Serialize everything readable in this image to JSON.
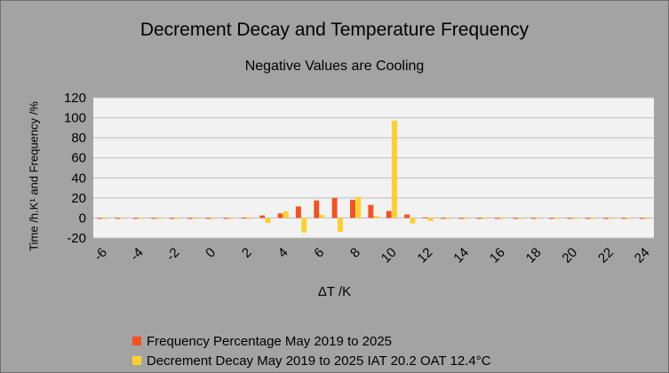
{
  "chart_data": {
    "type": "bar",
    "title": "Decrement Decay and Temperature Frequency",
    "subtitle": "Negative Values are Cooling",
    "xlabel": "ΔT /K",
    "ylabel": "Time /h.K¹ and Frequency /%",
    "ylim": [
      -20,
      120
    ],
    "y_ticks": [
      "-20",
      "0",
      "20",
      "40",
      "60",
      "80",
      "100",
      "120"
    ],
    "x_ticks": [
      "-6",
      "-4",
      "-2",
      "0",
      "2",
      "4",
      "6",
      "8",
      "10",
      "12",
      "14",
      "16",
      "18",
      "20",
      "22",
      "24"
    ],
    "categories": [
      -6,
      -5,
      -4,
      -3,
      -2,
      -1,
      0,
      1,
      2,
      3,
      4,
      5,
      6,
      7,
      8,
      9,
      10,
      11,
      12,
      13,
      14,
      15,
      16,
      17,
      18,
      19,
      20,
      21,
      22,
      23,
      24
    ],
    "grid": true,
    "legend_position": "bottom",
    "series": [
      {
        "name": "Frequency Percentage May 2019 to 2025",
        "color": "#f4511e",
        "values": [
          0,
          0,
          0,
          0,
          0,
          0,
          0,
          0,
          0.3,
          2.5,
          4.5,
          11.5,
          17.5,
          20,
          18,
          13,
          7,
          3.5,
          0.5,
          0,
          0,
          0,
          0,
          0,
          0,
          0,
          0,
          0,
          0,
          0,
          0
        ]
      },
      {
        "name": "Decrement Decay May 2019 to 2025 IAT 20.2 OAT 12.4°C",
        "color": "#ffd02a",
        "values": [
          0,
          0,
          0,
          0,
          0,
          0,
          0,
          0,
          0,
          -5,
          6.5,
          -14.5,
          3,
          -14,
          21,
          2,
          97,
          -5.5,
          -3,
          0,
          0,
          0,
          0,
          0,
          0,
          0,
          0,
          0,
          0,
          0,
          0
        ]
      }
    ]
  }
}
